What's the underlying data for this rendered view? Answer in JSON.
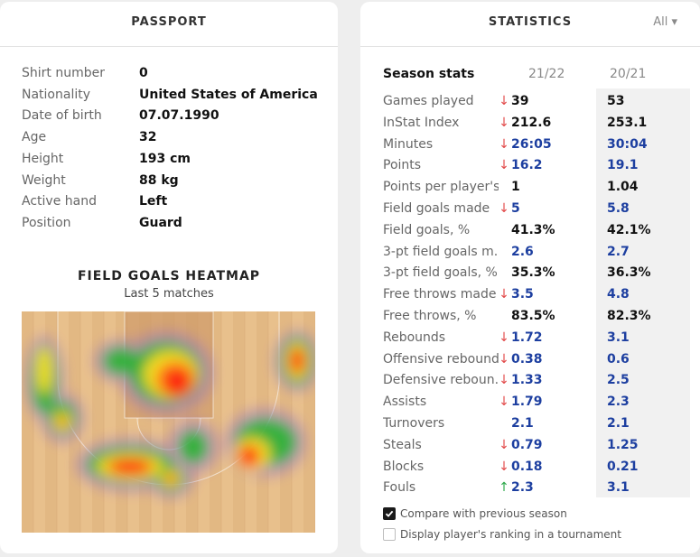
{
  "passport": {
    "title": "PASSPORT",
    "fields": [
      {
        "label": "Shirt number",
        "value": "0"
      },
      {
        "label": "Nationality",
        "value": "United States of America"
      },
      {
        "label": "Date of birth",
        "value": "07.07.1990"
      },
      {
        "label": "Age",
        "value": "32"
      },
      {
        "label": "Height",
        "value": "193 cm"
      },
      {
        "label": "Weight",
        "value": "88 kg"
      },
      {
        "label": "Active hand",
        "value": "Left"
      },
      {
        "label": "Position",
        "value": "Guard"
      }
    ],
    "heatmap": {
      "title": "FIELD GOALS HEATMAP",
      "subtitle": "Last 5 matches"
    }
  },
  "statistics": {
    "title": "STATISTICS",
    "filter_label": "All ▾",
    "season_label": "Season stats",
    "col_current": "21/22",
    "col_previous": "20/21",
    "rows": [
      {
        "label": "Games played",
        "trend": "down",
        "cur": "39",
        "prev": "53",
        "color": "black"
      },
      {
        "label": "InStat Index",
        "trend": "down",
        "cur": "212.6",
        "prev": "253.1",
        "color": "black"
      },
      {
        "label": "Minutes",
        "trend": "down",
        "cur": "26:05",
        "prev": "30:04",
        "color": "blue"
      },
      {
        "label": "Points",
        "trend": "down",
        "cur": "16.2",
        "prev": "19.1",
        "color": "blue"
      },
      {
        "label": "Points per player's...",
        "trend": "",
        "cur": "1",
        "prev": "1.04",
        "color": "black"
      },
      {
        "label": "Field goals made",
        "trend": "down",
        "cur": "5",
        "prev": "5.8",
        "color": "blue"
      },
      {
        "label": "Field goals, %",
        "trend": "",
        "cur": "41.3%",
        "prev": "42.1%",
        "color": "black"
      },
      {
        "label": "3-pt field goals m...",
        "trend": "",
        "cur": "2.6",
        "prev": "2.7",
        "color": "blue"
      },
      {
        "label": "3-pt field goals, %",
        "trend": "",
        "cur": "35.3%",
        "prev": "36.3%",
        "color": "black"
      },
      {
        "label": "Free throws made",
        "trend": "down",
        "cur": "3.5",
        "prev": "4.8",
        "color": "blue"
      },
      {
        "label": "Free throws, %",
        "trend": "",
        "cur": "83.5%",
        "prev": "82.3%",
        "color": "black"
      },
      {
        "label": "Rebounds",
        "trend": "down",
        "cur": "1.72",
        "prev": "3.1",
        "color": "blue"
      },
      {
        "label": "Offensive rebounds",
        "trend": "down",
        "cur": "0.38",
        "prev": "0.6",
        "color": "blue"
      },
      {
        "label": "Defensive reboun...",
        "trend": "down",
        "cur": "1.33",
        "prev": "2.5",
        "color": "blue"
      },
      {
        "label": "Assists",
        "trend": "down",
        "cur": "1.79",
        "prev": "2.3",
        "color": "blue"
      },
      {
        "label": "Turnovers",
        "trend": "",
        "cur": "2.1",
        "prev": "2.1",
        "color": "blue"
      },
      {
        "label": "Steals",
        "trend": "down",
        "cur": "0.79",
        "prev": "1.25",
        "color": "blue"
      },
      {
        "label": "Blocks",
        "trend": "down",
        "cur": "0.18",
        "prev": "0.21",
        "color": "blue"
      },
      {
        "label": "Fouls",
        "trend": "up",
        "cur": "2.3",
        "prev": "3.1",
        "color": "blue"
      }
    ],
    "options": [
      {
        "label": "Compare with previous season",
        "checked": true
      },
      {
        "label": "Display player's ranking in a tournament",
        "checked": false
      }
    ]
  }
}
